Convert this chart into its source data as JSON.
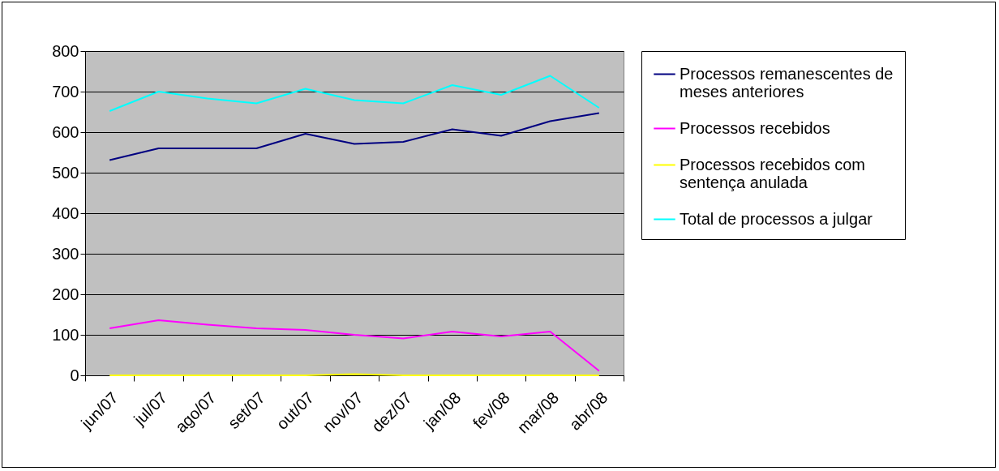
{
  "chart_data": {
    "type": "line",
    "categories": [
      "jun/07",
      "jul/07",
      "ago/07",
      "set/07",
      "out/07",
      "nov/07",
      "dez/07",
      "jan/08",
      "fev/08",
      "mar/08",
      "abr/08"
    ],
    "series": [
      {
        "name": "Processos remanescentes de meses anteriores",
        "color": "#000080",
        "values": [
          531,
          560,
          560,
          560,
          596,
          571,
          576,
          607,
          591,
          627,
          647
        ]
      },
      {
        "name": "Processos recebidos",
        "color": "#ff00ff",
        "values": [
          116,
          136,
          125,
          116,
          112,
          100,
          91,
          108,
          96,
          108,
          11
        ]
      },
      {
        "name": "Processos recebidos com sentença anulada",
        "color": "#ffff00",
        "values": [
          0,
          0,
          0,
          0,
          0,
          3,
          0,
          0,
          0,
          0,
          0
        ]
      },
      {
        "name": "Total de processos a julgar",
        "color": "#00ffff",
        "values": [
          652,
          700,
          683,
          671,
          707,
          679,
          671,
          716,
          692,
          739,
          660
        ]
      }
    ],
    "ylim": [
      0,
      800
    ],
    "yticks": [
      0,
      100,
      200,
      300,
      400,
      500,
      600,
      700,
      800
    ],
    "grid": "y",
    "legend": "right",
    "marker": "none",
    "line_style": "solid"
  }
}
